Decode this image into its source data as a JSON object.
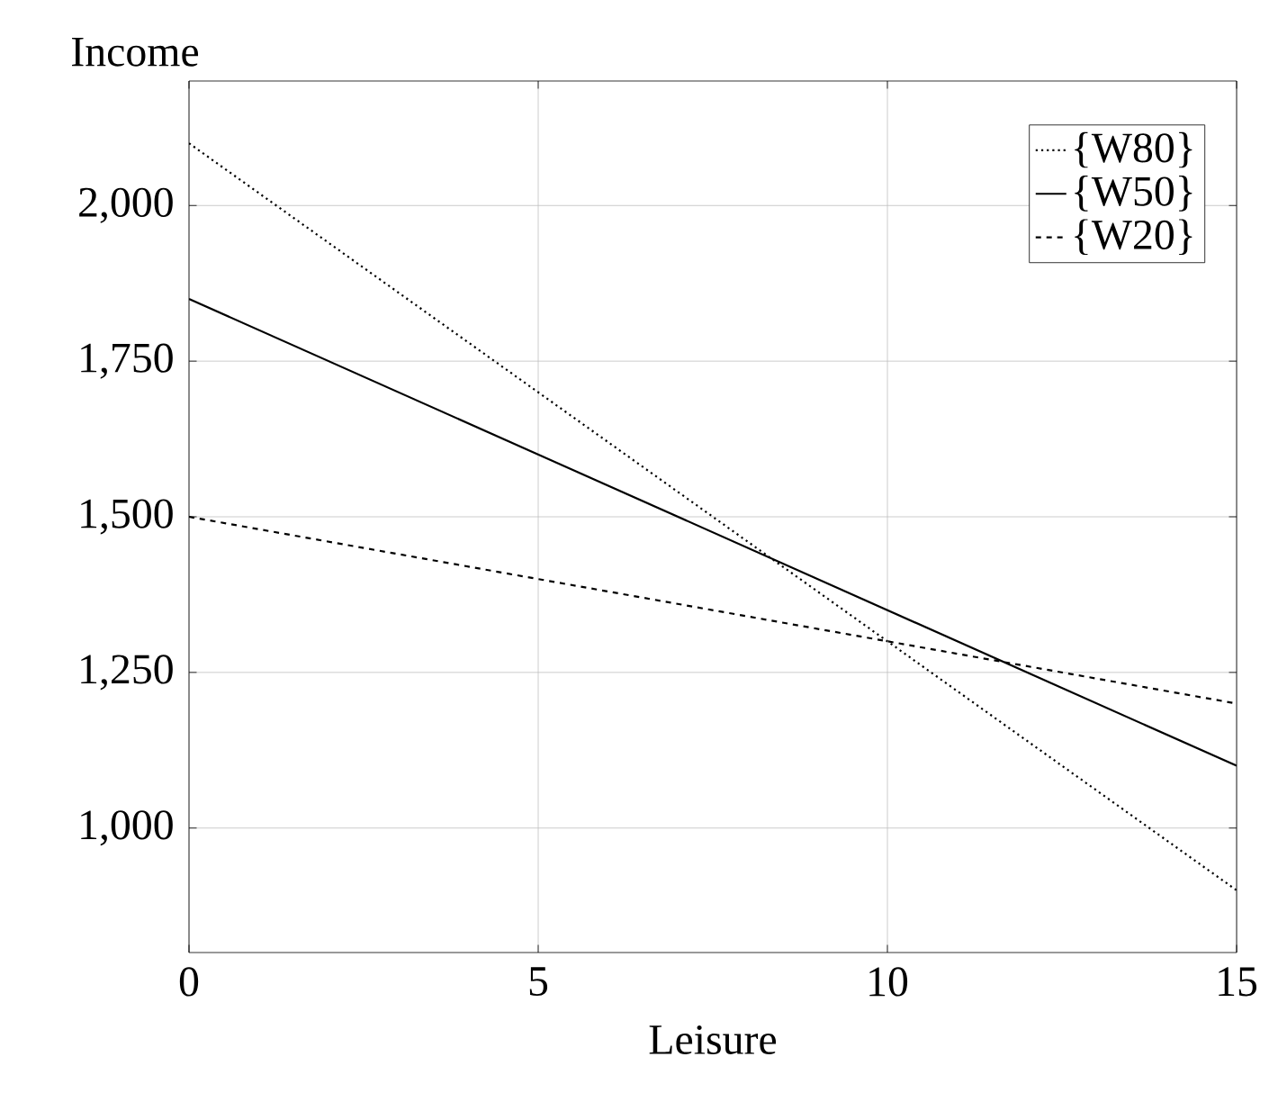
{
  "chart_data": {
    "type": "line",
    "xlabel": "Leisure",
    "ylabel": "Income",
    "xlim": [
      0,
      15
    ],
    "ylim": [
      800,
      2200
    ],
    "xticks": [
      0,
      5,
      10,
      15
    ],
    "yticks": [
      {
        "value": 1000,
        "label": "1,000"
      },
      {
        "value": 1250,
        "label": "1,250"
      },
      {
        "value": 1500,
        "label": "1,500"
      },
      {
        "value": 1750,
        "label": "1,750"
      },
      {
        "value": 2000,
        "label": "2,000"
      }
    ],
    "grid": true,
    "legend": "top right",
    "marker": "none",
    "x": [
      0,
      15
    ],
    "series": [
      {
        "name": "{W80}",
        "color": "#000000",
        "line_style": "dotted",
        "values": [
          2100,
          900
        ]
      },
      {
        "name": "{W50}",
        "color": "#000000",
        "line_style": "solid",
        "values": [
          1850,
          1100
        ]
      },
      {
        "name": "{W20}",
        "color": "#000000",
        "line_style": "dashed",
        "values": [
          1500,
          1200
        ]
      }
    ]
  }
}
